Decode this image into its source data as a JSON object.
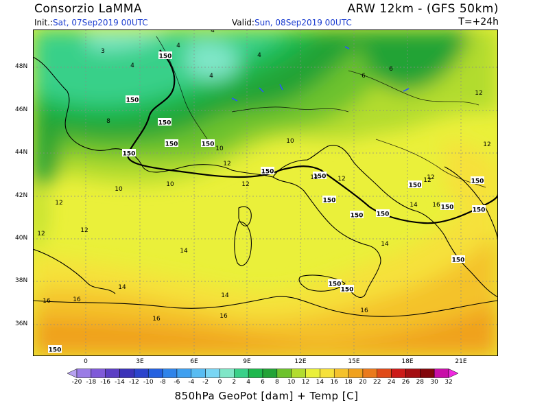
{
  "header": {
    "org": "Consorzio LaMMA",
    "model": "ARW 12km - (GFS 50km)",
    "init_label": "Init.:",
    "init_value": "Sat, 07Sep2019 00UTC",
    "valid_label": "Valid:",
    "valid_value": "Sun, 08Sep2019 00UTC",
    "step": "T=+24h"
  },
  "map": {
    "lat_labels": [
      "48N",
      "46N",
      "44N",
      "42N",
      "40N",
      "38N",
      "36N"
    ],
    "lon_labels": [
      "0",
      "3E",
      "6E",
      "9E",
      "12E",
      "15E",
      "18E",
      "21E"
    ],
    "geopotential_contour": "150",
    "temperature_labels": [
      "3",
      "4",
      "4",
      "4",
      "4",
      "4",
      "6",
      "6",
      "8",
      "10",
      "10",
      "10",
      "10",
      "12",
      "12",
      "12",
      "12",
      "12",
      "12",
      "12",
      "12",
      "12",
      "12",
      "12",
      "14",
      "14",
      "14",
      "14",
      "14",
      "16",
      "16",
      "16",
      "16",
      "16",
      "16"
    ]
  },
  "colorbar": {
    "ticks": [
      "-20",
      "-18",
      "-16",
      "-14",
      "-12",
      "-10",
      "-8",
      "-6",
      "-4",
      "-2",
      "0",
      "2",
      "4",
      "6",
      "8",
      "10",
      "12",
      "14",
      "16",
      "18",
      "20",
      "22",
      "24",
      "26",
      "28",
      "30",
      "32"
    ],
    "colors": [
      "#b7a2f0",
      "#9a7ce6",
      "#7f5ad8",
      "#5b3ec4",
      "#3b33b8",
      "#2b44cc",
      "#2461e0",
      "#2f84ea",
      "#3fa0f0",
      "#58bcf2",
      "#7ad6f4",
      "#7fe6c7",
      "#39d089",
      "#1eb84d",
      "#22a336",
      "#6dc22d",
      "#b2dc2f",
      "#eaf03a",
      "#f6e13a",
      "#f4c22c",
      "#f0a11e",
      "#ea7a1c",
      "#e04a18",
      "#cc1a18",
      "#a40e12",
      "#82060c",
      "#c80ea8",
      "#f028e0"
    ],
    "caption": "850hPa GeoPot [dam] + Temp [C]"
  },
  "colors": {
    "header_accent": "#1a3cd0"
  }
}
